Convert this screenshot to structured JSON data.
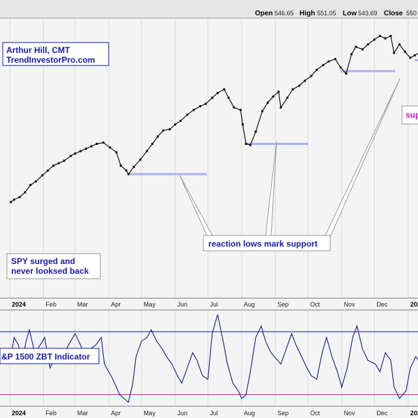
{
  "header": {
    "open_label": "Open",
    "open_value": "546.65",
    "high_label": "High",
    "high_value": "551.05",
    "low_label": "Low",
    "low_value": "543.69",
    "close_label": "Close",
    "close_value": "550"
  },
  "author_box": {
    "line1": "Arthur Hill, CMT",
    "line2": "TrendInvestorPro.com"
  },
  "callouts": {
    "surge_line1": "SPY surged and",
    "surge_line2": "never looksed back",
    "reaction": "reaction lows mark support",
    "support_partial": "sup"
  },
  "indicator_label": "&P 1500 ZBT Indicator",
  "x_axis_labels": [
    "2024",
    "Feb",
    "Mar",
    "Apr",
    "May",
    "Jun",
    "Jul",
    "Aug",
    "Sep",
    "Oct",
    "Nov",
    "Dec",
    "202"
  ],
  "colors": {
    "price": "#111111",
    "support_line": "#a9b1f0",
    "indicator_line": "#1a1a8c",
    "upper_threshold": "#1a1a8c",
    "lower_threshold": "#b0308f",
    "annotation_text": "#1a1aa8",
    "support_text": "#c01ec0"
  },
  "chart_data": [
    {
      "type": "line",
      "x": [
        "2024-01-02",
        "2024-01-05",
        "2024-01-10",
        "2024-01-15",
        "2024-01-20",
        "2024-01-25",
        "2024-01-31",
        "2024-02-05",
        "2024-02-10",
        "2024-02-15",
        "2024-02-20",
        "2024-02-26",
        "2024-03-01",
        "2024-03-06",
        "2024-03-11",
        "2024-03-16",
        "2024-03-21",
        "2024-03-27",
        "2024-04-02",
        "2024-04-08",
        "2024-04-12",
        "2024-04-17",
        "2024-04-19",
        "2024-04-24",
        "2024-04-30",
        "2024-05-06",
        "2024-05-11",
        "2024-05-16",
        "2024-05-21",
        "2024-05-27",
        "2024-06-01",
        "2024-06-06",
        "2024-06-12",
        "2024-06-18",
        "2024-06-24",
        "2024-06-29",
        "2024-07-05",
        "2024-07-10",
        "2024-07-16",
        "2024-07-20",
        "2024-07-25",
        "2024-07-31",
        "2024-08-02",
        "2024-08-05",
        "2024-08-09",
        "2024-08-14",
        "2024-08-20",
        "2024-08-25",
        "2024-08-30",
        "2024-09-04",
        "2024-09-06",
        "2024-09-12",
        "2024-09-17",
        "2024-09-23",
        "2024-09-28",
        "2024-10-04",
        "2024-10-09",
        "2024-10-15",
        "2024-10-20",
        "2024-10-26",
        "2024-10-31",
        "2024-11-05",
        "2024-11-10",
        "2024-11-14",
        "2024-11-20",
        "2024-11-25",
        "2024-12-01",
        "2024-12-06",
        "2024-12-11",
        "2024-12-16",
        "2024-12-19",
        "2024-12-24",
        "2024-12-29",
        "2025-01-03",
        "2025-01-07",
        "2025-01-13"
      ],
      "series": [
        {
          "values": [
            470,
            472,
            474,
            478,
            484,
            487,
            492,
            496,
            500,
            502,
            504,
            508,
            510,
            512,
            514,
            516,
            518,
            519,
            515,
            511,
            500,
            496,
            493,
            499,
            505,
            512,
            518,
            524,
            529,
            530,
            534,
            537,
            542,
            546,
            549,
            551,
            556,
            560,
            563,
            556,
            548,
            546,
            534,
            518,
            517,
            528,
            545,
            552,
            557,
            561,
            548,
            556,
            563,
            566,
            570,
            574,
            579,
            583,
            586,
            588,
            581,
            576,
            592,
            598,
            596,
            600,
            604,
            607,
            605,
            607,
            593,
            600,
            594,
            589,
            591,
            594
          ]
        }
      ],
      "annotations": [
        {
          "text": "reaction lows mark support"
        },
        {
          "text": "SPY surged and never looksed back"
        }
      ],
      "support_levels": [
        {
          "from": "2024-04-19",
          "to": "2024-06-30",
          "value": 493
        },
        {
          "from": "2024-08-05",
          "to": "2024-10-01",
          "value": 518
        },
        {
          "from": "2024-10-31",
          "to": "2024-12-20",
          "value": 578
        },
        {
          "from": "2025-01-07",
          "to": "2025-01-15",
          "value": 587
        }
      ]
    },
    {
      "type": "line",
      "title": "&P 1500 ZBT Indicator",
      "x": [
        "2024-01-02",
        "2024-01-05",
        "2024-01-09",
        "2024-01-12",
        "2024-01-16",
        "2024-01-19",
        "2024-01-24",
        "2024-01-29",
        "2024-02-02",
        "2024-02-07",
        "2024-02-12",
        "2024-02-15",
        "2024-02-20",
        "2024-02-26",
        "2024-03-01",
        "2024-03-06",
        "2024-03-11",
        "2024-03-15",
        "2024-03-20",
        "2024-03-25",
        "2024-03-28",
        "2024-04-03",
        "2024-04-08",
        "2024-04-11",
        "2024-04-15",
        "2024-04-19",
        "2024-04-23",
        "2024-04-26",
        "2024-05-01",
        "2024-05-06",
        "2024-05-10",
        "2024-05-15",
        "2024-05-20",
        "2024-05-24",
        "2024-05-29",
        "2024-06-03",
        "2024-06-07",
        "2024-06-12",
        "2024-06-17",
        "2024-06-21",
        "2024-06-26",
        "2024-07-01",
        "2024-07-05",
        "2024-07-10",
        "2024-07-15",
        "2024-07-19",
        "2024-07-24",
        "2024-07-29",
        "2024-08-01",
        "2024-08-05",
        "2024-08-09",
        "2024-08-14",
        "2024-08-19",
        "2024-08-23",
        "2024-08-28",
        "2024-09-03",
        "2024-09-06",
        "2024-09-11",
        "2024-09-16",
        "2024-09-20",
        "2024-09-25",
        "2024-09-30",
        "2024-10-04",
        "2024-10-09",
        "2024-10-14",
        "2024-10-18",
        "2024-10-23",
        "2024-10-28",
        "2024-11-01",
        "2024-11-06",
        "2024-11-11",
        "2024-11-15",
        "2024-11-20",
        "2024-11-25",
        "2024-12-02",
        "2024-12-06",
        "2024-12-11",
        "2024-12-16",
        "2024-12-19",
        "2024-12-24",
        "2024-12-30",
        "2025-01-03",
        "2025-01-08",
        "2025-01-13"
      ],
      "series": [
        {
          "values": [
            0.55,
            0.6,
            0.58,
            0.53,
            0.59,
            0.62,
            0.56,
            0.58,
            0.6,
            0.52,
            0.55,
            0.57,
            0.56,
            0.59,
            0.61,
            0.58,
            0.54,
            0.57,
            0.58,
            0.6,
            0.53,
            0.5,
            0.47,
            0.45,
            0.44,
            0.43,
            0.48,
            0.55,
            0.59,
            0.6,
            0.62,
            0.59,
            0.57,
            0.55,
            0.53,
            0.5,
            0.48,
            0.52,
            0.56,
            0.54,
            0.5,
            0.49,
            0.61,
            0.66,
            0.59,
            0.53,
            0.48,
            0.46,
            0.44,
            0.45,
            0.51,
            0.6,
            0.63,
            0.59,
            0.56,
            0.54,
            0.53,
            0.57,
            0.61,
            0.58,
            0.55,
            0.52,
            0.5,
            0.49,
            0.56,
            0.6,
            0.55,
            0.51,
            0.47,
            0.52,
            0.6,
            0.63,
            0.57,
            0.54,
            0.53,
            0.51,
            0.56,
            0.54,
            0.47,
            0.44,
            0.46,
            0.52,
            0.55,
            0.53
          ]
        }
      ],
      "thresholds": [
        {
          "value": 0.615,
          "color": "#1a1a8c"
        },
        {
          "value": 0.45,
          "color": "#b0308f"
        }
      ],
      "ylim": [
        0.42,
        0.67
      ]
    }
  ]
}
